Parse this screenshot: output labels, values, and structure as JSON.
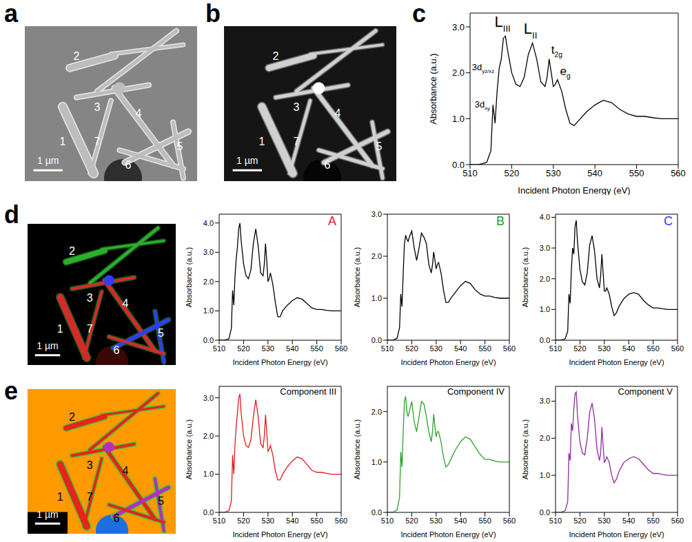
{
  "images": [
    {
      "letter": "a",
      "labels": [
        "1",
        "2",
        "3",
        "4",
        "5",
        "6",
        "7"
      ],
      "scale_bar": "1 µm"
    },
    {
      "letter": "b",
      "labels": [
        "1",
        "2",
        "3",
        "4",
        "5",
        "6",
        "7"
      ],
      "scale_bar": "1 µm"
    },
    {
      "letter": "d",
      "labels": [
        "1",
        "2",
        "3",
        "4",
        "5",
        "6",
        "7"
      ],
      "scale_bar": "1 µm"
    },
    {
      "letter": "e",
      "labels": [
        "1",
        "2",
        "3",
        "4",
        "5",
        "6",
        "7"
      ],
      "scale_bar": "1 µm"
    }
  ],
  "chart_data": [
    {
      "letter": "c",
      "type": "line",
      "x_label": "Incident Photon Energy (eV)",
      "y_label": "Absorbance (a.u.)",
      "x": [
        510,
        512,
        513,
        514,
        515,
        515.5,
        516,
        516.5,
        517,
        517.5,
        518,
        518.5,
        519,
        520,
        521,
        522,
        523,
        524,
        525,
        526,
        527,
        528,
        528.5,
        529,
        529.5,
        530,
        530.5,
        531,
        532,
        533,
        534,
        535,
        536,
        538,
        540,
        542,
        544,
        546,
        548,
        550,
        552,
        554,
        556,
        558,
        560
      ],
      "xlim": [
        510,
        560
      ],
      "xticks": [
        510,
        520,
        530,
        540,
        550,
        560
      ],
      "ylim": [
        0,
        3.3
      ],
      "yticks": [
        {
          "value": 0,
          "label": "0.0"
        },
        {
          "value": 1,
          "label": "1.0"
        },
        {
          "value": 2,
          "label": "2.0"
        },
        {
          "value": 3,
          "label": "3.0"
        }
      ],
      "series": [
        {
          "color": "#000000",
          "values": [
            0,
            0,
            0.02,
            0.05,
            0.3,
            1.3,
            0.9,
            1.6,
            2.1,
            2.3,
            2.75,
            2.8,
            2.5,
            2.0,
            1.75,
            1.7,
            1.9,
            2.4,
            2.65,
            2.3,
            1.8,
            1.7,
            1.9,
            2.3,
            2.0,
            1.7,
            1.75,
            1.85,
            1.6,
            1.2,
            0.9,
            0.85,
            0.95,
            1.15,
            1.3,
            1.4,
            1.35,
            1.2,
            1.1,
            1.05,
            1.05,
            1.02,
            1.0,
            1.0,
            1.0
          ]
        }
      ],
      "annotations": [
        {
          "text": "3d",
          "sub": "xy",
          "x": 514.8,
          "y": 1.25
        },
        {
          "text": "3d",
          "sub": "yz/xz",
          "x": 515.8,
          "y": 2.05
        },
        {
          "text": "L",
          "sub": "III",
          "x": 517.8,
          "y": 3.0
        },
        {
          "text": "L",
          "sub": "II",
          "x": 524.5,
          "y": 2.85
        },
        {
          "text": "t",
          "sub": "2g",
          "x": 529.5,
          "y": 2.42
        },
        {
          "text": "e",
          "sub": "g",
          "x": 531.6,
          "y": 1.95
        }
      ]
    },
    {
      "title": "A",
      "type": "line",
      "x_label": "Incident Photon Energy (eV)",
      "y_label": "Absorbance (a.u.)",
      "x": [
        510,
        512,
        513,
        514,
        515,
        515.5,
        516,
        516.5,
        517,
        517.5,
        518,
        518.5,
        519,
        520,
        521,
        522,
        523,
        524,
        525,
        526,
        527,
        528,
        528.5,
        529,
        529.5,
        530,
        530.5,
        531,
        532,
        533,
        534,
        535,
        536,
        538,
        540,
        542,
        544,
        546,
        548,
        550,
        552,
        554,
        556,
        558,
        560
      ],
      "xlim": [
        510,
        560
      ],
      "xticks": [
        510,
        520,
        530,
        540,
        550,
        560
      ],
      "ylim": [
        0,
        4.3
      ],
      "yticks": [
        {
          "value": 0,
          "label": "0.0"
        },
        {
          "value": 1,
          "label": "1.0"
        },
        {
          "value": 2,
          "label": "2.0"
        },
        {
          "value": 3,
          "label": "3.0"
        },
        {
          "value": 4,
          "label": "4.0"
        }
      ],
      "series": [
        {
          "color": "#000000",
          "values": [
            0,
            0,
            0.02,
            0.05,
            0.4,
            1.7,
            1.2,
            2.2,
            2.8,
            3.2,
            3.8,
            4.0,
            3.4,
            2.6,
            2.2,
            2.1,
            2.4,
            3.3,
            3.8,
            3.2,
            2.3,
            2.2,
            2.6,
            3.3,
            2.7,
            2.0,
            2.1,
            2.3,
            1.9,
            1.3,
            0.8,
            0.8,
            1.0,
            1.2,
            1.35,
            1.45,
            1.4,
            1.25,
            1.1,
            1.05,
            1.05,
            1.02,
            1.0,
            1.0,
            1.0
          ]
        }
      ]
    },
    {
      "title": "B",
      "type": "line",
      "x_label": "Incident Photon Energy (eV)",
      "y_label": "Absorbance (a.u.)",
      "x": [
        510,
        512,
        513,
        514,
        515,
        515.5,
        516,
        516.5,
        517,
        517.5,
        518,
        518.5,
        519,
        520,
        521,
        522,
        523,
        524,
        525,
        526,
        527,
        528,
        528.5,
        529,
        529.5,
        530,
        530.5,
        531,
        532,
        533,
        534,
        535,
        536,
        538,
        540,
        542,
        544,
        546,
        548,
        550,
        552,
        554,
        556,
        558,
        560
      ],
      "xlim": [
        510,
        560
      ],
      "xticks": [
        510,
        520,
        530,
        540,
        550,
        560
      ],
      "ylim": [
        0,
        3.0
      ],
      "yticks": [
        {
          "value": 0,
          "label": "0.0"
        },
        {
          "value": 1,
          "label": "1.0"
        },
        {
          "value": 2,
          "label": "2.0"
        },
        {
          "value": 3,
          "label": "3.0"
        }
      ],
      "series": [
        {
          "color": "#000000",
          "values": [
            0,
            0,
            0.02,
            0.05,
            0.3,
            1.1,
            0.8,
            1.6,
            2.3,
            2.5,
            2.4,
            2.35,
            2.45,
            2.6,
            2.2,
            1.9,
            2.2,
            2.55,
            2.45,
            2.3,
            1.8,
            1.6,
            1.8,
            2.1,
            1.9,
            1.7,
            1.8,
            1.85,
            1.6,
            1.2,
            0.9,
            0.9,
            1.0,
            1.15,
            1.3,
            1.4,
            1.35,
            1.2,
            1.1,
            1.05,
            1.05,
            1.02,
            1.0,
            1.0,
            1.0
          ]
        }
      ]
    },
    {
      "title": "C",
      "type": "line",
      "x_label": "Incident Photon Energy (eV)",
      "y_label": "Absorbance (a.u.)",
      "x": [
        510,
        512,
        513,
        514,
        515,
        515.5,
        516,
        516.5,
        517,
        517.5,
        518,
        518.5,
        519,
        520,
        521,
        522,
        523,
        524,
        525,
        526,
        527,
        528,
        528.5,
        529,
        529.5,
        530,
        530.5,
        531,
        532,
        533,
        534,
        535,
        536,
        538,
        540,
        542,
        544,
        546,
        548,
        550,
        552,
        554,
        556,
        558,
        560
      ],
      "xlim": [
        510,
        560
      ],
      "xticks": [
        510,
        520,
        530,
        540,
        550,
        560
      ],
      "ylim": [
        0,
        4.1
      ],
      "yticks": [
        {
          "value": 0,
          "label": "0.0"
        },
        {
          "value": 1,
          "label": "1.0"
        },
        {
          "value": 2,
          "label": "2.0"
        },
        {
          "value": 3,
          "label": "3.0"
        },
        {
          "value": 4,
          "label": "4.0"
        }
      ],
      "series": [
        {
          "color": "#000000",
          "values": [
            0,
            0,
            0.02,
            0.05,
            0.3,
            1.5,
            1.2,
            2.3,
            3.0,
            2.8,
            3.7,
            3.9,
            3.2,
            2.3,
            1.9,
            1.8,
            2.2,
            3.1,
            3.4,
            2.9,
            2.0,
            1.7,
            2.1,
            2.8,
            2.2,
            1.6,
            1.6,
            1.7,
            1.5,
            1.1,
            0.8,
            0.9,
            1.1,
            1.35,
            1.5,
            1.55,
            1.5,
            1.3,
            1.15,
            1.05,
            1.05,
            1.02,
            1.0,
            1.0,
            1.0
          ]
        }
      ]
    },
    {
      "title": "Component III",
      "type": "line",
      "x_label": "Incident Photon Energy (eV)",
      "y_label": "Absorbance (a.u.)",
      "x": [
        510,
        512,
        513,
        514,
        515,
        515.5,
        516,
        516.5,
        517,
        517.5,
        518,
        518.5,
        519,
        520,
        521,
        522,
        523,
        524,
        525,
        526,
        527,
        528,
        528.5,
        529,
        529.5,
        530,
        530.5,
        531,
        532,
        533,
        534,
        535,
        536,
        538,
        540,
        542,
        544,
        546,
        548,
        550,
        552,
        554,
        556,
        558,
        560
      ],
      "xlim": [
        510,
        560
      ],
      "xticks": [
        510,
        520,
        530,
        540,
        550,
        560
      ],
      "ylim": [
        0,
        3.3
      ],
      "yticks": [
        {
          "value": 0,
          "label": "0.0"
        },
        {
          "value": 1,
          "label": "1.0"
        },
        {
          "value": 2,
          "label": "2.0"
        },
        {
          "value": 3,
          "label": "3.0"
        }
      ],
      "series": [
        {
          "color": "#e41a1c",
          "values": [
            0,
            0,
            0.02,
            0.05,
            0.3,
            1.5,
            1.0,
            1.8,
            2.3,
            2.6,
            3.0,
            3.1,
            2.6,
            2.0,
            1.75,
            1.7,
            1.9,
            2.5,
            2.95,
            2.5,
            1.8,
            1.7,
            2.0,
            2.55,
            2.1,
            1.6,
            1.65,
            1.75,
            1.5,
            1.1,
            0.85,
            0.85,
            1.0,
            1.2,
            1.35,
            1.45,
            1.4,
            1.25,
            1.1,
            1.05,
            1.05,
            1.02,
            1.0,
            1.0,
            1.0
          ]
        }
      ]
    },
    {
      "title": "Component IV",
      "type": "line",
      "x_label": "Incident Photon Energy (eV)",
      "y_label": "Absorbance (a.u.)",
      "x": [
        510,
        512,
        513,
        514,
        515,
        515.5,
        516,
        516.5,
        517,
        517.5,
        518,
        518.5,
        519,
        520,
        521,
        522,
        523,
        524,
        525,
        526,
        527,
        528,
        528.5,
        529,
        529.5,
        530,
        530.5,
        531,
        532,
        533,
        534,
        535,
        536,
        538,
        540,
        542,
        544,
        546,
        548,
        550,
        552,
        554,
        556,
        558,
        560
      ],
      "xlim": [
        510,
        560
      ],
      "xticks": [
        510,
        520,
        530,
        540,
        550,
        560
      ],
      "ylim": [
        0,
        2.5
      ],
      "yticks": [
        {
          "value": 0,
          "label": "0.0"
        },
        {
          "value": 1,
          "label": "1.0"
        },
        {
          "value": 2,
          "label": "2.0"
        }
      ],
      "series": [
        {
          "color": "#2ca02c",
          "values": [
            0,
            0,
            0.02,
            0.05,
            0.3,
            1.2,
            0.9,
            1.6,
            2.2,
            2.3,
            2.0,
            1.9,
            2.0,
            2.2,
            1.8,
            1.6,
            1.9,
            2.2,
            2.15,
            1.9,
            1.6,
            1.4,
            1.6,
            1.95,
            1.7,
            1.5,
            1.6,
            1.6,
            1.4,
            1.1,
            0.9,
            0.95,
            1.05,
            1.25,
            1.4,
            1.5,
            1.45,
            1.3,
            1.15,
            1.05,
            1.05,
            1.02,
            1.0,
            1.0,
            1.0
          ]
        }
      ]
    },
    {
      "title": "Component V",
      "type": "line",
      "x_label": "Incident Photon Energy (eV)",
      "y_label": "Absorbance (a.u.)",
      "x": [
        510,
        512,
        513,
        514,
        515,
        515.5,
        516,
        516.5,
        517,
        517.5,
        518,
        518.5,
        519,
        520,
        521,
        522,
        523,
        524,
        525,
        526,
        527,
        528,
        528.5,
        529,
        529.5,
        530,
        530.5,
        531,
        532,
        533,
        534,
        535,
        536,
        538,
        540,
        542,
        544,
        546,
        548,
        550,
        552,
        554,
        556,
        558,
        560
      ],
      "xlim": [
        510,
        560
      ],
      "xticks": [
        510,
        520,
        530,
        540,
        550,
        560
      ],
      "ylim": [
        0,
        3.4
      ],
      "yticks": [
        {
          "value": 0,
          "label": "0.0"
        },
        {
          "value": 1,
          "label": "1.0"
        },
        {
          "value": 2,
          "label": "2.0"
        },
        {
          "value": 3,
          "label": "3.0"
        }
      ],
      "series": [
        {
          "color": "#8e2a9e",
          "values": [
            0,
            0,
            0.02,
            0.05,
            0.3,
            1.6,
            1.4,
            2.4,
            2.2,
            2.8,
            3.2,
            3.25,
            2.6,
            1.9,
            1.6,
            1.55,
            2.0,
            2.7,
            2.95,
            2.5,
            1.7,
            1.4,
            1.6,
            2.3,
            1.8,
            1.35,
            1.4,
            1.5,
            1.35,
            1.0,
            0.8,
            0.9,
            1.1,
            1.35,
            1.45,
            1.5,
            1.45,
            1.3,
            1.15,
            1.05,
            1.05,
            1.02,
            1.0,
            1.0,
            1.0
          ]
        }
      ]
    }
  ]
}
